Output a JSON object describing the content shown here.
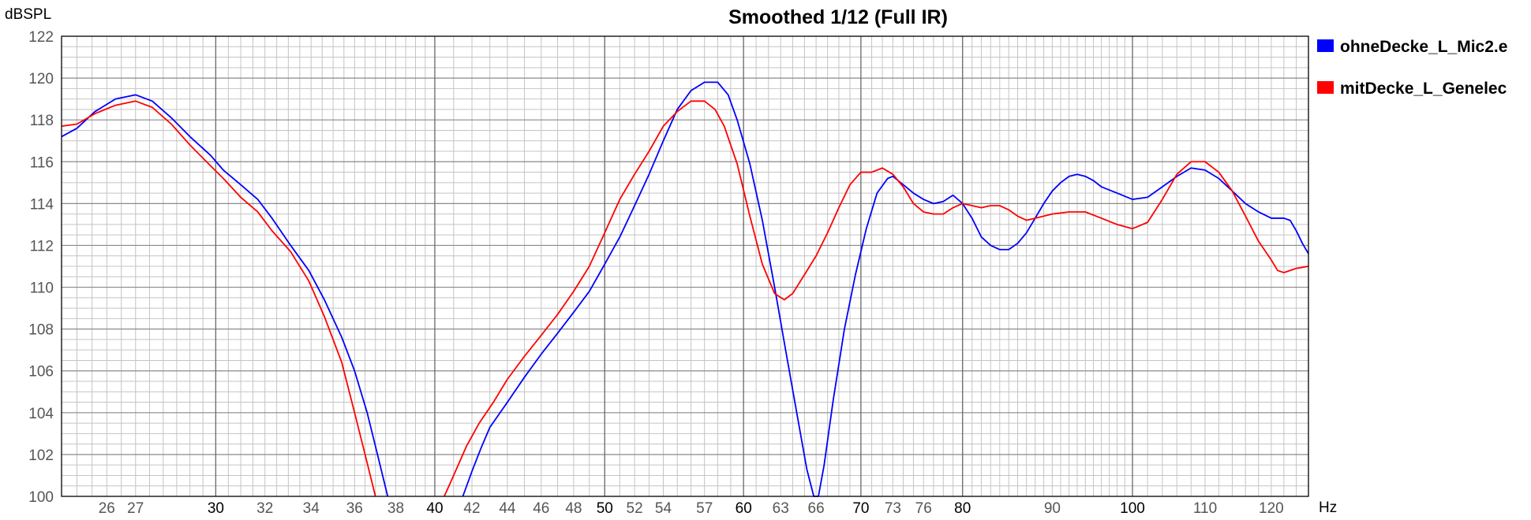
{
  "chart_data": {
    "type": "line",
    "title": "Smoothed 1/12 (Full IR)",
    "ylabel": "dBSPL",
    "xunit": "Hz",
    "xscale": "log",
    "xlim": [
      24.5,
      126
    ],
    "ylim": [
      100,
      122
    ],
    "yticks": [
      "100",
      "102",
      "104",
      "106",
      "108",
      "110",
      "112",
      "114",
      "116",
      "118",
      "120",
      "122"
    ],
    "xticks_major": [
      "30",
      "40",
      "50",
      "60",
      "70",
      "80",
      "100"
    ],
    "xticks_minor": [
      "26",
      "27",
      "32",
      "34",
      "36",
      "38",
      "42",
      "44",
      "46",
      "48",
      "52",
      "54",
      "57",
      "63",
      "66",
      "73",
      "76",
      "90",
      "110",
      "120"
    ],
    "grid": true,
    "legend_position": "right",
    "series": [
      {
        "name": "ohneDecke_L_Mic2.e",
        "color": "#0000ff",
        "points": [
          [
            24.5,
            117.2
          ],
          [
            25,
            117.6
          ],
          [
            25.6,
            118.4
          ],
          [
            26.3,
            119.0
          ],
          [
            27,
            119.2
          ],
          [
            27.6,
            118.9
          ],
          [
            28.3,
            118.1
          ],
          [
            29,
            117.2
          ],
          [
            29.8,
            116.3
          ],
          [
            30.3,
            115.6
          ],
          [
            31,
            114.9
          ],
          [
            31.7,
            114.2
          ],
          [
            32.3,
            113.3
          ],
          [
            33.1,
            112.0
          ],
          [
            33.9,
            110.8
          ],
          [
            34.6,
            109.4
          ],
          [
            35.4,
            107.6
          ],
          [
            36,
            106.0
          ],
          [
            36.6,
            104.0
          ],
          [
            37.1,
            102.0
          ],
          [
            37.6,
            100.0
          ],
          [
            41.5,
            100.0
          ],
          [
            42,
            101.2
          ],
          [
            42.5,
            102.3
          ],
          [
            43,
            103.3
          ],
          [
            44,
            104.5
          ],
          [
            45,
            105.7
          ],
          [
            46,
            106.8
          ],
          [
            47,
            107.8
          ],
          [
            48,
            108.8
          ],
          [
            49,
            109.8
          ],
          [
            50,
            111.1
          ],
          [
            51,
            112.4
          ],
          [
            52,
            113.9
          ],
          [
            53,
            115.4
          ],
          [
            54,
            117.0
          ],
          [
            55,
            118.5
          ],
          [
            56,
            119.4
          ],
          [
            57,
            119.8
          ],
          [
            58,
            119.8
          ],
          [
            58.8,
            119.2
          ],
          [
            59.5,
            118.0
          ],
          [
            60.5,
            115.9
          ],
          [
            61.5,
            113.2
          ],
          [
            62.5,
            110.0
          ],
          [
            63.5,
            106.7
          ],
          [
            64.5,
            103.5
          ],
          [
            65.2,
            101.3
          ],
          [
            65.8,
            100.0
          ],
          [
            66.2,
            100.0
          ],
          [
            66.7,
            101.5
          ],
          [
            67.5,
            104.6
          ],
          [
            68.5,
            108.0
          ],
          [
            69.5,
            110.6
          ],
          [
            70.5,
            112.8
          ],
          [
            71.5,
            114.5
          ],
          [
            72.5,
            115.2
          ],
          [
            73,
            115.3
          ],
          [
            74,
            114.9
          ],
          [
            75,
            114.5
          ],
          [
            76,
            114.2
          ],
          [
            77,
            114.0
          ],
          [
            78,
            114.1
          ],
          [
            79,
            114.4
          ],
          [
            80,
            114.0
          ],
          [
            81,
            113.3
          ],
          [
            82,
            112.4
          ],
          [
            83,
            112.0
          ],
          [
            84,
            111.8
          ],
          [
            85,
            111.8
          ],
          [
            86,
            112.1
          ],
          [
            87,
            112.6
          ],
          [
            88,
            113.3
          ],
          [
            89,
            114.0
          ],
          [
            90,
            114.6
          ],
          [
            91,
            115.0
          ],
          [
            92,
            115.3
          ],
          [
            93,
            115.4
          ],
          [
            94,
            115.3
          ],
          [
            95,
            115.1
          ],
          [
            96,
            114.8
          ],
          [
            98,
            114.5
          ],
          [
            100,
            114.2
          ],
          [
            102,
            114.3
          ],
          [
            104,
            114.8
          ],
          [
            106,
            115.3
          ],
          [
            108,
            115.7
          ],
          [
            110,
            115.6
          ],
          [
            112,
            115.2
          ],
          [
            114,
            114.6
          ],
          [
            116,
            114.0
          ],
          [
            118,
            113.6
          ],
          [
            120,
            113.3
          ],
          [
            122,
            113.3
          ],
          [
            123,
            113.2
          ],
          [
            124,
            112.7
          ],
          [
            125,
            112.1
          ],
          [
            126,
            111.6
          ]
        ]
      },
      {
        "name": "mitDecke_L_Genelec",
        "color": "#ff0000",
        "points": [
          [
            24.5,
            117.7
          ],
          [
            25,
            117.8
          ],
          [
            25.6,
            118.3
          ],
          [
            26.3,
            118.7
          ],
          [
            27,
            118.9
          ],
          [
            27.6,
            118.6
          ],
          [
            28.3,
            117.8
          ],
          [
            29,
            116.8
          ],
          [
            29.8,
            115.8
          ],
          [
            30.3,
            115.2
          ],
          [
            31,
            114.3
          ],
          [
            31.7,
            113.6
          ],
          [
            32.3,
            112.7
          ],
          [
            33.1,
            111.7
          ],
          [
            33.9,
            110.3
          ],
          [
            34.6,
            108.6
          ],
          [
            35.4,
            106.4
          ],
          [
            36,
            104.0
          ],
          [
            36.5,
            102.0
          ],
          [
            37,
            100.0
          ],
          [
            40.5,
            100.0
          ],
          [
            41,
            101.0
          ],
          [
            41.7,
            102.4
          ],
          [
            42.4,
            103.5
          ],
          [
            43.2,
            104.5
          ],
          [
            44,
            105.6
          ],
          [
            45,
            106.7
          ],
          [
            46,
            107.7
          ],
          [
            47,
            108.7
          ],
          [
            48,
            109.8
          ],
          [
            49,
            111.0
          ],
          [
            50,
            112.6
          ],
          [
            51,
            114.2
          ],
          [
            52,
            115.4
          ],
          [
            53,
            116.5
          ],
          [
            54,
            117.7
          ],
          [
            55,
            118.4
          ],
          [
            56,
            118.9
          ],
          [
            57,
            118.9
          ],
          [
            57.8,
            118.5
          ],
          [
            58.5,
            117.7
          ],
          [
            59.5,
            115.9
          ],
          [
            60.5,
            113.4
          ],
          [
            61.5,
            111.1
          ],
          [
            62.5,
            109.7
          ],
          [
            63.3,
            109.4
          ],
          [
            64,
            109.7
          ],
          [
            65,
            110.6
          ],
          [
            66,
            111.5
          ],
          [
            67,
            112.6
          ],
          [
            68,
            113.8
          ],
          [
            69,
            114.9
          ],
          [
            70,
            115.5
          ],
          [
            71,
            115.5
          ],
          [
            72,
            115.7
          ],
          [
            73,
            115.4
          ],
          [
            74,
            114.8
          ],
          [
            75,
            114.0
          ],
          [
            76,
            113.6
          ],
          [
            77,
            113.5
          ],
          [
            78,
            113.5
          ],
          [
            79,
            113.8
          ],
          [
            80,
            114.0
          ],
          [
            81,
            113.9
          ],
          [
            82,
            113.8
          ],
          [
            83,
            113.9
          ],
          [
            84,
            113.9
          ],
          [
            85,
            113.7
          ],
          [
            86,
            113.4
          ],
          [
            87,
            113.2
          ],
          [
            88,
            113.3
          ],
          [
            90,
            113.5
          ],
          [
            92,
            113.6
          ],
          [
            94,
            113.6
          ],
          [
            96,
            113.3
          ],
          [
            98,
            113.0
          ],
          [
            100,
            112.8
          ],
          [
            102,
            113.1
          ],
          [
            104,
            114.2
          ],
          [
            106,
            115.4
          ],
          [
            108,
            116.0
          ],
          [
            110,
            116.0
          ],
          [
            112,
            115.5
          ],
          [
            114,
            114.6
          ],
          [
            116,
            113.4
          ],
          [
            118,
            112.2
          ],
          [
            120,
            111.3
          ],
          [
            121,
            110.8
          ],
          [
            122,
            110.7
          ],
          [
            124,
            110.9
          ],
          [
            126,
            111.0
          ]
        ]
      }
    ]
  }
}
